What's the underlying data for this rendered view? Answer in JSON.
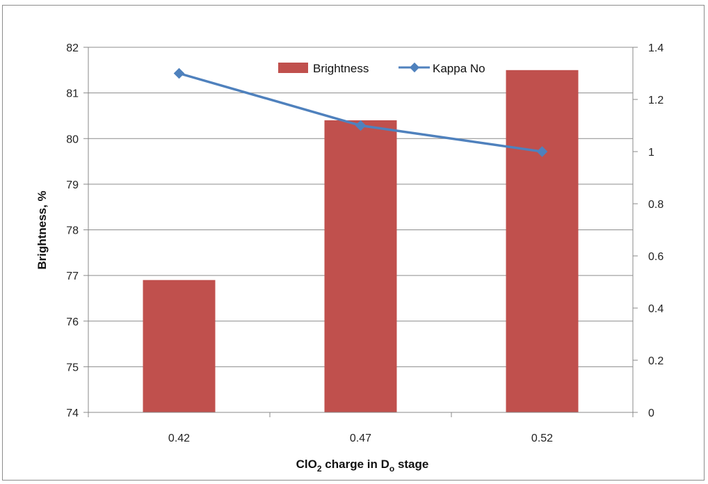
{
  "chart_data": {
    "type": "bar+line",
    "categories": [
      "0.42",
      "0.47",
      "0.52"
    ],
    "series": [
      {
        "name": "Brightness",
        "type": "bar",
        "axis": "left",
        "values": [
          76.9,
          80.4,
          81.5
        ],
        "color": "#c0504d"
      },
      {
        "name": "Kappa No",
        "type": "line",
        "axis": "right",
        "marker": "diamond",
        "values": [
          1.3,
          1.1,
          1.0
        ],
        "color": "#4f81bd"
      }
    ],
    "xlabel": {
      "main": "ClO",
      "sub1": "2",
      "mid": " charge in D",
      "sub2": "o",
      "end": " stage"
    },
    "ylabel": "Brightness, %",
    "y_left": {
      "min": 74,
      "max": 82,
      "ticks": [
        "74",
        "75",
        "76",
        "77",
        "78",
        "79",
        "80",
        "81",
        "82"
      ]
    },
    "y_right": {
      "min": 0,
      "max": 1.4,
      "ticks": [
        "0",
        "0.2",
        "0.4",
        "0.6",
        "0.8",
        "1",
        "1.2",
        "1.4"
      ]
    },
    "grid": true,
    "legend": "top-center"
  }
}
